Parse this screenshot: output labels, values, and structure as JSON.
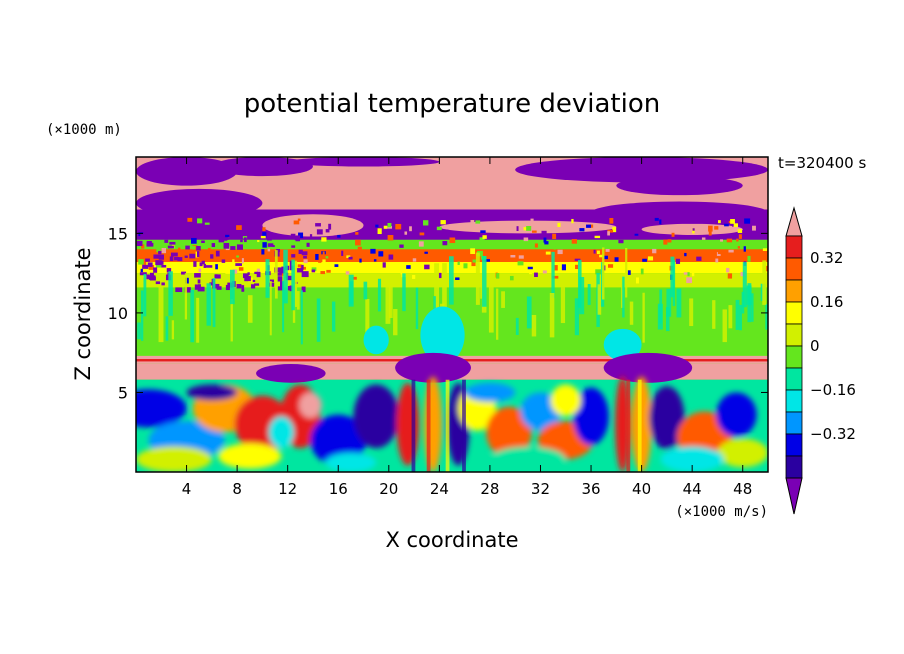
{
  "chart_data": {
    "type": "heatmap",
    "title": "potential temperature deviation",
    "xlabel": "X coordinate",
    "ylabel": "Z coordinate",
    "x_unit": "(×1000 m/s)",
    "y_unit": "(×1000 m)",
    "time_label": "t=320400 s",
    "xlim": [
      0,
      50
    ],
    "ylim": [
      0,
      19.8
    ],
    "x_ticks": [
      4,
      8,
      12,
      16,
      20,
      24,
      28,
      32,
      36,
      40,
      44,
      48
    ],
    "y_ticks": [
      5,
      10,
      15
    ],
    "colorbar": {
      "labels": [
        "0.32",
        "0.16",
        "0",
        "-0.16",
        "-0.32"
      ],
      "levels": [
        -0.4,
        -0.32,
        -0.24,
        -0.16,
        -0.08,
        0,
        0.08,
        0.16,
        0.24,
        0.32,
        0.4
      ],
      "colors": [
        "#7a00b4",
        "#2a00a0",
        "#0000e6",
        "#0096ff",
        "#00e6e6",
        "#00e6a0",
        "#64e61e",
        "#d2f000",
        "#ffff00",
        "#ffa000",
        "#ff5a00",
        "#e61e1e",
        "#f0a0a0"
      ],
      "extend": "both"
    },
    "regions": {
      "top_layer": "alternating purple and pink bands above z≈13",
      "middle_layer": "green/light-green near-zero values between z≈7 and z≈13 with orange/red stripes near z≈13",
      "inversion_line": "pink/red thin band at z≈7 with purple domes near x≈24 and x≈40",
      "bottom_layer": "turbulent mixed cells below z≈6"
    }
  }
}
